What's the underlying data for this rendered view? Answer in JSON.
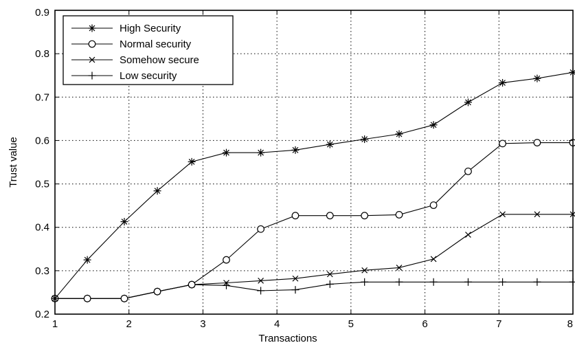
{
  "chart_data": {
    "type": "line",
    "title": "",
    "xlabel": "Transactions",
    "ylabel": "Trust value",
    "xlim": [
      1,
      8
    ],
    "ylim": [
      0.2,
      0.9
    ],
    "xticks": [
      1,
      2,
      3,
      4,
      5,
      6,
      7,
      8
    ],
    "yticks": [
      0.2,
      0.3,
      0.4,
      0.5,
      0.6,
      0.7,
      0.8,
      0.9
    ],
    "xtick_labels": [
      "1",
      "2",
      "3",
      "4",
      "5",
      "6",
      "7",
      "8"
    ],
    "ytick_labels": [
      "0.2",
      "0.3",
      "0.4",
      "0.5",
      "0.6",
      "0.7",
      "0.8",
      "0.9"
    ],
    "grid": true,
    "legend_position": "top-left",
    "x": [
      1,
      1.4375,
      1.9375,
      2.3837,
      2.8487,
      3.3162,
      3.7813,
      4.2489,
      4.7163,
      5.1837,
      5.6512,
      6.1163,
      6.5837,
      7.0489,
      7.5163,
      8.0
    ],
    "series": [
      {
        "name": "High Security",
        "marker": "asterisk",
        "values": [
          0.236,
          0.325,
          0.413,
          0.484,
          0.551,
          0.572,
          0.572,
          0.578,
          0.591,
          0.603,
          0.615,
          0.636,
          0.688,
          0.733,
          0.743,
          0.757
        ]
      },
      {
        "name": "Normal security",
        "marker": "circle",
        "values": [
          0.236,
          0.236,
          0.236,
          0.252,
          0.268,
          0.325,
          0.396,
          0.427,
          0.427,
          0.427,
          0.429,
          0.451,
          0.529,
          0.593,
          0.595,
          0.595
        ]
      },
      {
        "name": "Somehow secure",
        "marker": "x",
        "values": [
          0.236,
          0.236,
          0.236,
          0.252,
          0.268,
          0.272,
          0.277,
          0.282,
          0.292,
          0.301,
          0.307,
          0.327,
          0.383,
          0.43,
          0.43,
          0.43
        ]
      },
      {
        "name": "Low security",
        "marker": "plus",
        "values": [
          0.236,
          0.236,
          0.236,
          0.252,
          0.268,
          0.266,
          0.254,
          0.256,
          0.269,
          0.274,
          0.274,
          0.274,
          0.274,
          0.274,
          0.274,
          0.274
        ]
      }
    ]
  }
}
